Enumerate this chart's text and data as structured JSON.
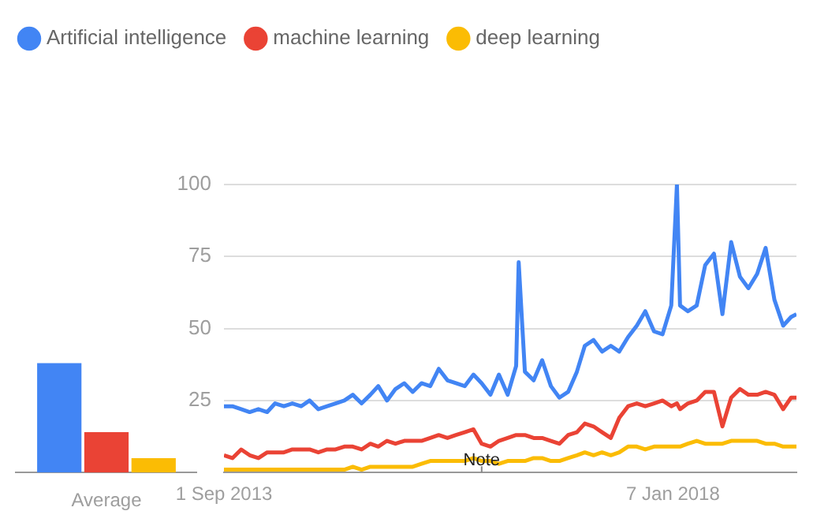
{
  "chart_data": [
    {
      "type": "bar",
      "categories": [
        "Average"
      ],
      "ylim": [
        0,
        100
      ],
      "tick_labels": "x",
      "series": [
        {
          "color": "#4285f4",
          "values": [
            38
          ]
        },
        {
          "color": "#ea4335",
          "values": [
            14
          ]
        },
        {
          "color": "#fbbc04",
          "values": [
            5
          ]
        }
      ]
    },
    {
      "type": "line",
      "legend": "top left",
      "grid": "y",
      "xlim": [
        "2013-09-01",
        "2019-03-20"
      ],
      "xticks": [
        {
          "value": "2013-09-01",
          "label": "1 Sep 2013"
        },
        {
          "value": "2018-01-07",
          "label": "7 Jan 2018"
        }
      ],
      "ylim": [
        0,
        100
      ],
      "yticks": [
        25,
        50,
        75,
        100
      ],
      "annotations": [
        {
          "text": "Note",
          "x": "2016-03-01"
        }
      ],
      "x": [
        "2013-09-01",
        "2013-10-01",
        "2013-11-01",
        "2013-12-01",
        "2014-01-01",
        "2014-02-01",
        "2014-03-01",
        "2014-04-01",
        "2014-05-01",
        "2014-06-01",
        "2014-07-01",
        "2014-08-01",
        "2014-09-01",
        "2014-10-01",
        "2014-11-01",
        "2014-12-01",
        "2015-01-01",
        "2015-02-01",
        "2015-03-01",
        "2015-04-01",
        "2015-05-01",
        "2015-06-01",
        "2015-07-01",
        "2015-08-01",
        "2015-09-01",
        "2015-10-01",
        "2015-11-01",
        "2015-12-01",
        "2016-01-01",
        "2016-02-01",
        "2016-03-01",
        "2016-04-01",
        "2016-05-01",
        "2016-06-01",
        "2016-07-01",
        "2016-07-10",
        "2016-08-01",
        "2016-09-01",
        "2016-10-01",
        "2016-11-01",
        "2016-12-01",
        "2017-01-01",
        "2017-02-01",
        "2017-03-01",
        "2017-04-01",
        "2017-05-01",
        "2017-06-01",
        "2017-07-01",
        "2017-08-01",
        "2017-09-01",
        "2017-10-01",
        "2017-11-01",
        "2017-12-01",
        "2018-01-01",
        "2018-01-21",
        "2018-02-01",
        "2018-03-01",
        "2018-04-01",
        "2018-05-01",
        "2018-06-01",
        "2018-07-01",
        "2018-08-01",
        "2018-09-01",
        "2018-10-01",
        "2018-11-01",
        "2018-12-01",
        "2019-01-01",
        "2019-02-01",
        "2019-03-01",
        "2019-03-20"
      ],
      "series": [
        {
          "name": "Artificial intelligence",
          "color": "#4285f4",
          "values": [
            23,
            23,
            22,
            21,
            22,
            21,
            24,
            23,
            24,
            23,
            25,
            22,
            23,
            24,
            25,
            27,
            24,
            27,
            30,
            25,
            29,
            31,
            28,
            31,
            30,
            36,
            32,
            31,
            30,
            34,
            31,
            27,
            34,
            27,
            37,
            73,
            35,
            32,
            39,
            30,
            26,
            28,
            35,
            44,
            46,
            42,
            44,
            42,
            47,
            51,
            56,
            49,
            48,
            58,
            100,
            58,
            56,
            58,
            72,
            76,
            55,
            80,
            68,
            64,
            69,
            78,
            60,
            51,
            54,
            55
          ]
        },
        {
          "name": "machine learning",
          "color": "#ea4335",
          "values": [
            6,
            5,
            8,
            6,
            5,
            7,
            7,
            7,
            8,
            8,
            8,
            7,
            8,
            8,
            9,
            9,
            8,
            10,
            9,
            11,
            10,
            11,
            11,
            11,
            12,
            13,
            12,
            13,
            14,
            15,
            10,
            9,
            11,
            12,
            13,
            13,
            13,
            12,
            12,
            11,
            10,
            13,
            14,
            17,
            16,
            14,
            12,
            19,
            23,
            24,
            23,
            24,
            25,
            23,
            24,
            22,
            24,
            25,
            28,
            28,
            16,
            26,
            29,
            27,
            27,
            28,
            27,
            22,
            26,
            26
          ]
        },
        {
          "name": "deep learning",
          "color": "#fbbc04",
          "values": [
            1,
            1,
            1,
            1,
            1,
            1,
            1,
            1,
            1,
            1,
            1,
            1,
            1,
            1,
            1,
            2,
            1,
            2,
            2,
            2,
            2,
            2,
            2,
            3,
            4,
            4,
            4,
            4,
            4,
            5,
            4,
            4,
            3,
            4,
            4,
            4,
            4,
            5,
            5,
            4,
            4,
            5,
            6,
            7,
            6,
            7,
            6,
            7,
            9,
            9,
            8,
            9,
            9,
            9,
            9,
            9,
            10,
            11,
            10,
            10,
            10,
            11,
            11,
            11,
            11,
            10,
            10,
            9,
            9,
            9
          ]
        }
      ]
    }
  ]
}
